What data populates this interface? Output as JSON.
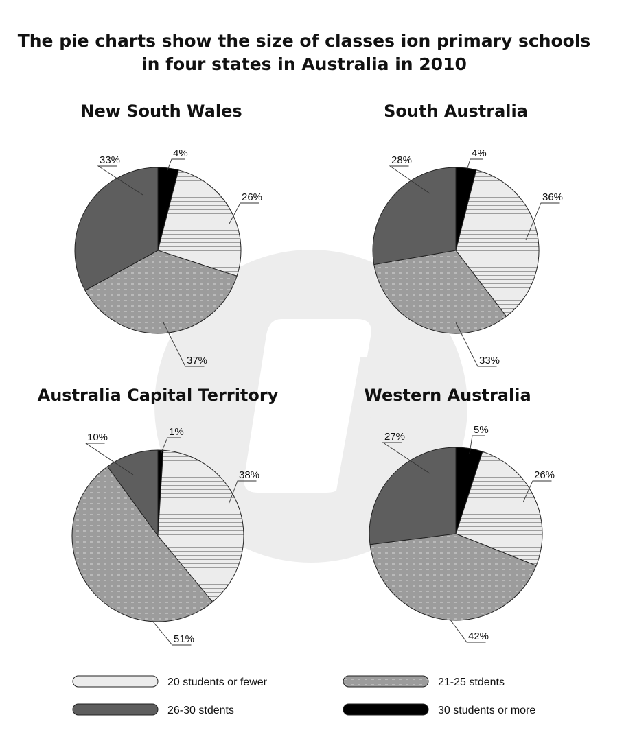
{
  "chart_data": {
    "type": "pie",
    "title_lines": [
      "The pie charts show the size of classes ion primary schools",
      "in four states in Australia in 2010"
    ],
    "categories": [
      "20 students or fewer",
      "21-25 stdents",
      "26-30 stdents",
      "30 students or more"
    ],
    "colors": {
      "20 students or fewer": "#e6e6e6",
      "21-25 stdents": "#9a9a9a",
      "26-30 stdents": "#5e5e5e",
      "30 students or more": "#000000"
    },
    "charts": [
      {
        "title": "New South Wales",
        "values": [
          26,
          37,
          33,
          4
        ],
        "labels": [
          "26%",
          "37%",
          "33%",
          "4%"
        ]
      },
      {
        "title": "South Australia",
        "values": [
          36,
          33,
          28,
          4
        ],
        "labels": [
          "36%",
          "33%",
          "28%",
          "4%"
        ]
      },
      {
        "title": "Australia Capital Territory",
        "values": [
          38,
          51,
          10,
          1
        ],
        "labels": [
          "38%",
          "51%",
          "10%",
          "1%"
        ]
      },
      {
        "title": "Western Australia",
        "values": [
          26,
          42,
          27,
          5
        ],
        "labels": [
          "26%",
          "42%",
          "27%",
          "5%"
        ]
      }
    ],
    "legend": [
      "20 students or fewer",
      "21-25 stdents",
      "26-30 stdents",
      "30 students or more"
    ],
    "legend_placement": "bottom"
  }
}
